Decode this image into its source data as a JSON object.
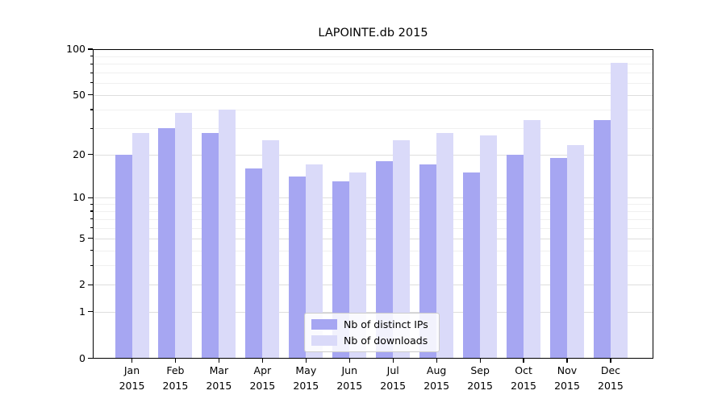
{
  "title": "LAPOINTE.db 2015",
  "chart_data": {
    "type": "bar",
    "title": "LAPOINTE.db 2015",
    "categories": [
      "Jan",
      "Feb",
      "Mar",
      "Apr",
      "May",
      "Jun",
      "Jul",
      "Aug",
      "Sep",
      "Oct",
      "Nov",
      "Dec"
    ],
    "category_year": "2015",
    "series": [
      {
        "name": "Nb of distinct IPs",
        "color": "#a6a6f2",
        "values": [
          20,
          30,
          28,
          16,
          14,
          13,
          18,
          17,
          15,
          20,
          19,
          34
        ]
      },
      {
        "name": "Nb of downloads",
        "color": "#dadaf9",
        "values": [
          28,
          38,
          40,
          25,
          17,
          15,
          25,
          28,
          27,
          34,
          23,
          81
        ]
      }
    ],
    "yscale": "log1p",
    "ylim": [
      0,
      100
    ],
    "y_major_ticks": [
      {
        "v": 0,
        "label": "0"
      },
      {
        "v": 1,
        "label": "1"
      },
      {
        "v": 2,
        "label": "2"
      },
      {
        "v": 5,
        "label": "5"
      },
      {
        "v": 10,
        "label": "10"
      },
      {
        "v": 20,
        "label": "20"
      },
      {
        "v": 50,
        "label": "50"
      },
      {
        "v": 100,
        "label": "100"
      }
    ],
    "y_minor_gridlines": [
      3,
      4,
      6,
      7,
      8,
      9,
      30,
      40,
      60,
      70,
      80,
      90
    ],
    "grid": true,
    "legend_position": "lower-center",
    "legend_labels": [
      "Nb of distinct IPs",
      "Nb of downloads"
    ]
  },
  "colors": {
    "ips_bar": "#a6a6f2",
    "downloads_bar": "#dadaf9",
    "spine": "#000000",
    "grid_major": "rgba(0,0,0,0.13)",
    "grid_minor": "rgba(0,0,0,0.06)",
    "background": "#ffffff"
  }
}
